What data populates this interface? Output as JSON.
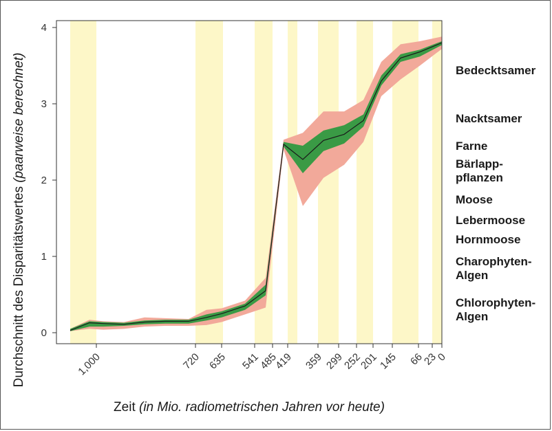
{
  "chart_data": {
    "type": "area",
    "ylabel": "Durchschnitt des Disparitätswertes",
    "ylabel_italic": "(paarweise berechnet)",
    "xlabel": "Zeit",
    "xlabel_italic": "(in Mio. radiometrischen Jahren vor heute)",
    "ylim": [
      0,
      4
    ],
    "yticks": [
      "0",
      "1",
      "2",
      "3",
      "4"
    ],
    "xticks": [
      "1,000",
      "720",
      "635",
      "541",
      "485",
      "419",
      "359",
      "299",
      "252",
      "201",
      "145",
      "66",
      "23",
      "0"
    ],
    "grid": false,
    "colors": {
      "band": "#fdf7c8",
      "outer_ci": "#f2a99a",
      "inner_ci": "#3a9a45",
      "mean_line": "#1a1a1a"
    },
    "series": [
      {
        "role": "mean",
        "values": [
          0.03,
          0.13,
          0.12,
          0.11,
          0.14,
          0.15,
          0.15,
          0.2,
          0.25,
          0.35,
          0.55,
          2.47,
          2.27,
          2.52,
          2.6,
          2.78,
          3.3,
          3.6,
          3.68,
          3.8
        ]
      },
      {
        "role": "inner_ci_upper",
        "values": [
          0.05,
          0.15,
          0.14,
          0.13,
          0.16,
          0.17,
          0.17,
          0.24,
          0.28,
          0.38,
          0.63,
          2.5,
          2.45,
          2.65,
          2.72,
          2.86,
          3.37,
          3.65,
          3.71,
          3.82
        ]
      },
      {
        "role": "inner_ci_lower",
        "values": [
          0.02,
          0.08,
          0.08,
          0.09,
          0.11,
          0.12,
          0.12,
          0.16,
          0.2,
          0.3,
          0.49,
          2.44,
          2.09,
          2.38,
          2.48,
          2.7,
          3.24,
          3.55,
          3.62,
          3.77
        ]
      },
      {
        "role": "outer_ci_upper",
        "values": [
          0.05,
          0.17,
          0.15,
          0.14,
          0.2,
          0.19,
          0.18,
          0.3,
          0.32,
          0.42,
          0.72,
          2.53,
          2.62,
          2.9,
          2.9,
          3.05,
          3.55,
          3.78,
          3.82,
          3.88
        ]
      },
      {
        "role": "outer_ci_lower",
        "values": [
          0.02,
          0.05,
          0.04,
          0.05,
          0.08,
          0.09,
          0.09,
          0.1,
          0.14,
          0.24,
          0.33,
          2.4,
          1.66,
          2.03,
          2.2,
          2.5,
          3.1,
          3.32,
          3.5,
          3.72
        ]
      }
    ],
    "group_labels": [
      {
        "lines": [
          "Bedecktsamer"
        ]
      },
      {
        "lines": [
          "Nacktsamer"
        ]
      },
      {
        "lines": [
          "Farne"
        ]
      },
      {
        "lines": [
          "Bärlapp-",
          "pflanzen"
        ]
      },
      {
        "lines": [
          "Moose"
        ]
      },
      {
        "lines": [
          "Lebermoose"
        ]
      },
      {
        "lines": [
          "Hornmoose"
        ]
      },
      {
        "lines": [
          "Charophyten-",
          "Algen"
        ]
      },
      {
        "lines": [
          "Chlorophyten-",
          "Algen"
        ]
      }
    ]
  }
}
